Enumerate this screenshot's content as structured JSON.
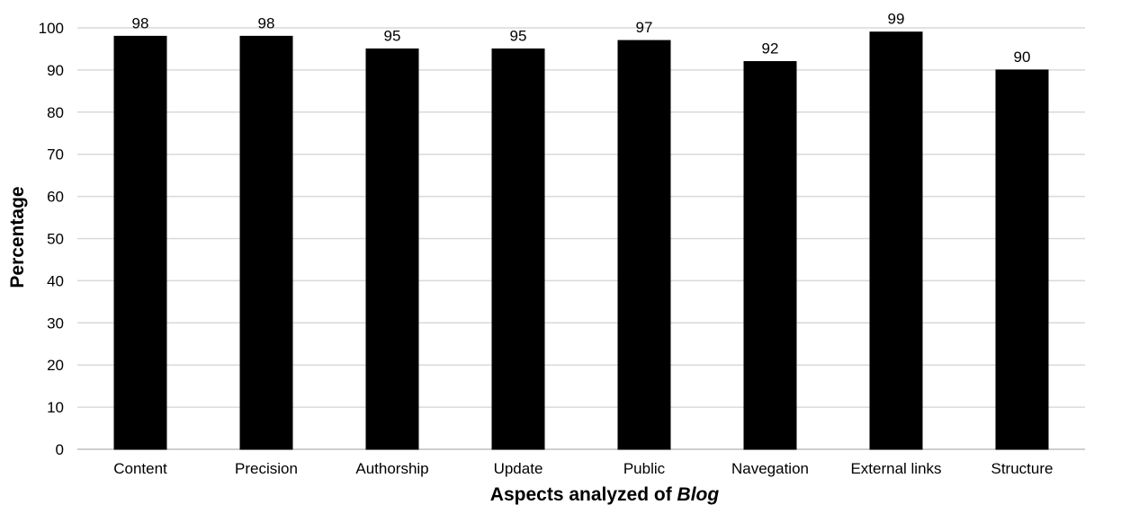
{
  "chart_data": {
    "type": "bar",
    "categories": [
      "Content",
      "Precision",
      "Authorship",
      "Update",
      "Public",
      "Navegation",
      "External links",
      "Structure"
    ],
    "values": [
      98,
      98,
      95,
      95,
      97,
      92,
      99,
      90
    ],
    "data_labels": [
      "98",
      "98",
      "95",
      "95",
      "97",
      "92",
      "99",
      "90"
    ],
    "xlabel": {
      "prefix": "Aspects analyzed of ",
      "emphasis": "Blog"
    },
    "ylabel": "Percentage",
    "ylim": [
      0,
      100
    ],
    "yticks": [
      0,
      10,
      20,
      30,
      40,
      50,
      60,
      70,
      80,
      90,
      100
    ],
    "grid": "horizontal",
    "legend": "none",
    "colors": {
      "bar_fill": "#000000",
      "bar_stroke": "#000000",
      "grid": "#d9d9d9",
      "axis": "#bfbfbf",
      "text": "#000000"
    }
  }
}
